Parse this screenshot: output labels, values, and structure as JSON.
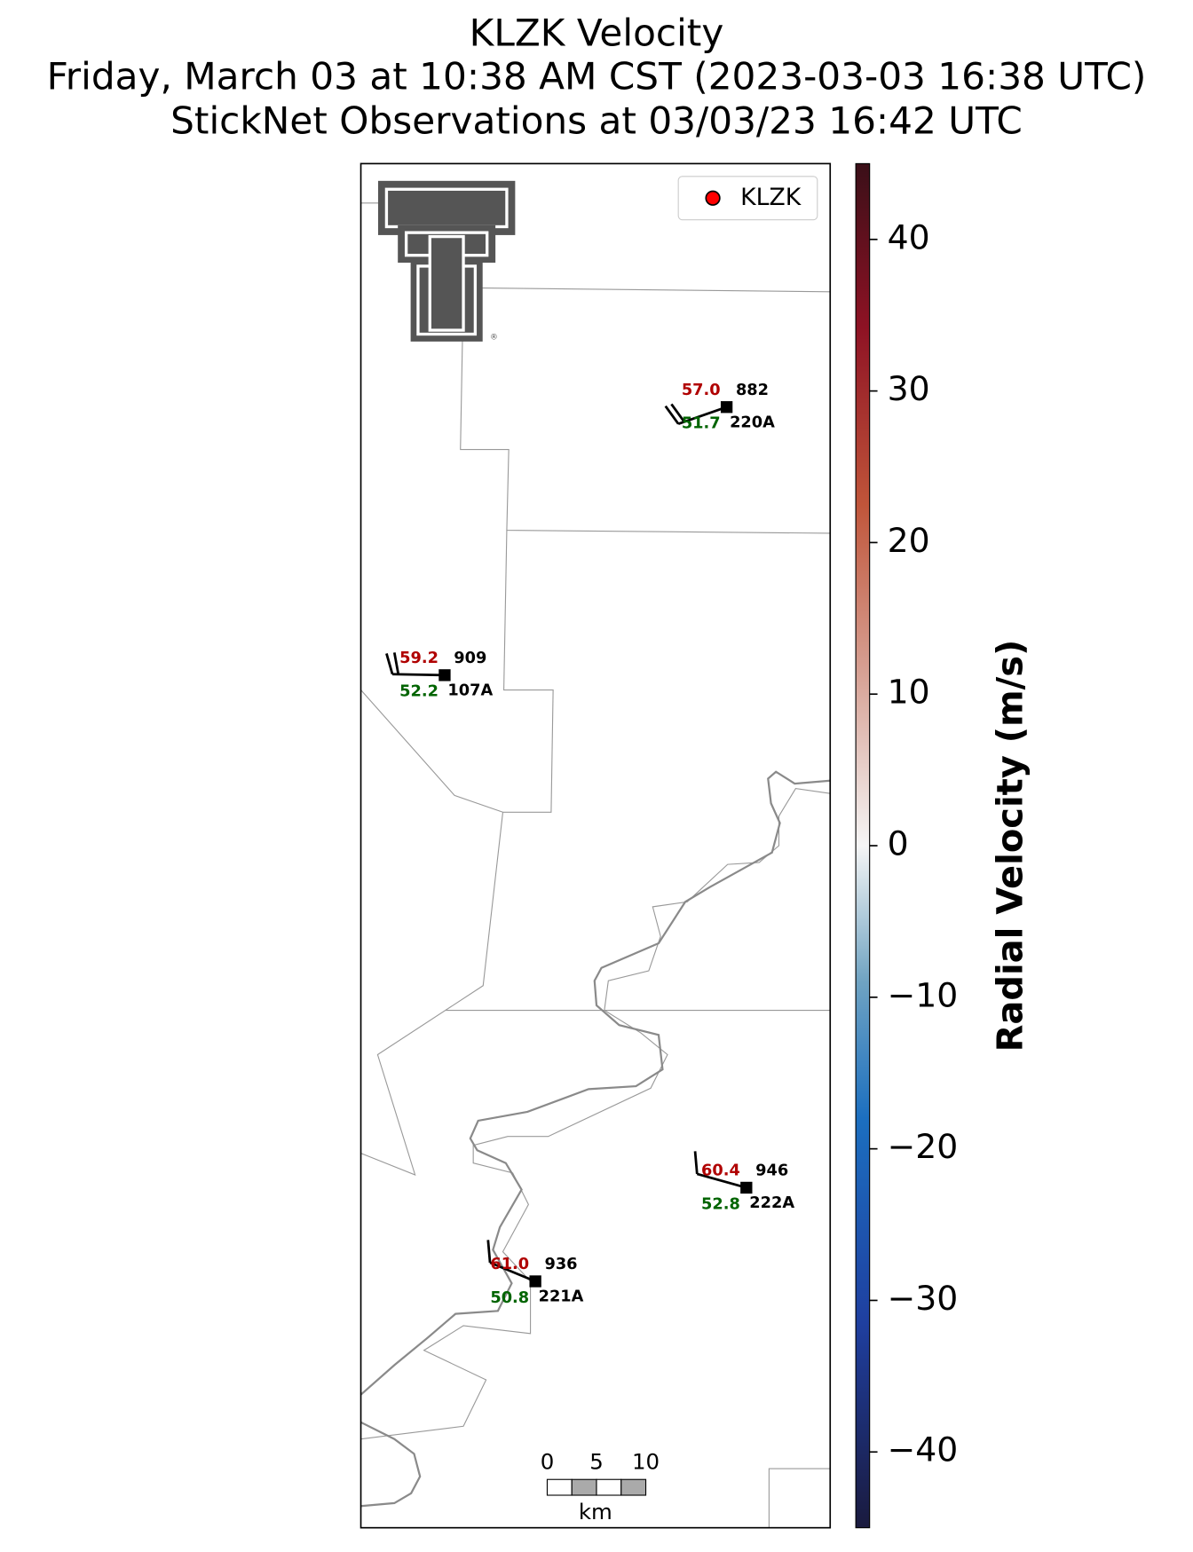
{
  "title": [
    "KLZK Velocity",
    "Friday, March 03 at 10:38 AM CST (2023-03-03 16:38 UTC)",
    "StickNet Observations at 03/03/23 16:42 UTC"
  ],
  "legend": {
    "label": "KLZK",
    "color": "#ff0000"
  },
  "stations": [
    {
      "red": "57.0",
      "code": "882",
      "green": "51.7",
      "id": "220A"
    },
    {
      "red": "59.2",
      "code": "909",
      "green": "52.2",
      "id": "107A"
    },
    {
      "red": "60.4",
      "code": "946",
      "green": "52.8",
      "id": "222A"
    },
    {
      "red": "61.0",
      "code": "936",
      "green": "50.8",
      "id": "221A"
    }
  ],
  "colorbar": {
    "label": "Radial Velocity (m/s)",
    "lim": [
      -45,
      45
    ],
    "ticks": [
      {
        "value": -40,
        "label": "−40"
      },
      {
        "value": -30,
        "label": "−30"
      },
      {
        "value": -20,
        "label": "−20"
      },
      {
        "value": -10,
        "label": "−10"
      },
      0,
      10,
      20,
      30,
      40
    ]
  },
  "scalebar": {
    "ticks": [
      "0",
      "5",
      "10"
    ],
    "unit": "km"
  }
}
